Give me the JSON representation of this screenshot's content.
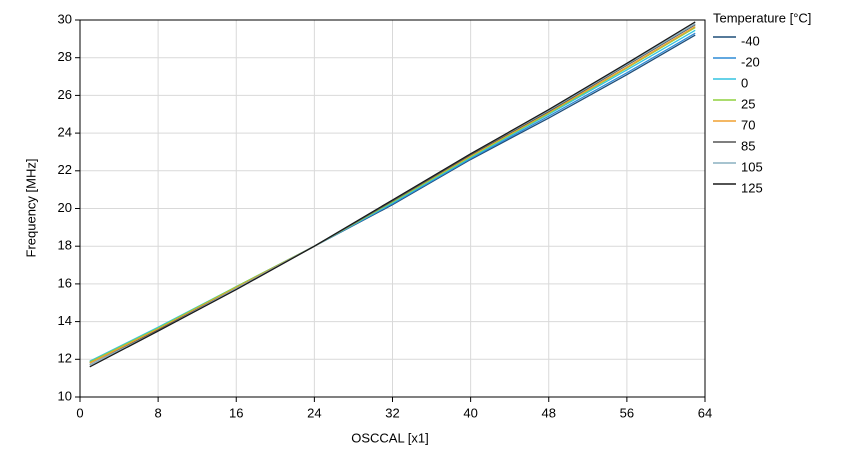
{
  "chart_data": {
    "type": "line",
    "xlabel": "OSCCAL [x1]",
    "ylabel": "Frequency [MHz]",
    "legend_title": "Temperature [°C]",
    "legend": "right",
    "x": [
      1,
      8,
      16,
      24,
      32,
      40,
      48,
      56,
      63
    ],
    "series": [
      {
        "name": "-40",
        "color": "#1f4e79",
        "values": [
          11.8,
          13.6,
          15.8,
          18.0,
          20.2,
          22.6,
          24.8,
          27.1,
          29.2
        ]
      },
      {
        "name": "-20",
        "color": "#2e8bd6",
        "values": [
          11.85,
          13.65,
          15.85,
          18.0,
          20.25,
          22.65,
          24.9,
          27.2,
          29.3
        ]
      },
      {
        "name": "0",
        "color": "#33c3e0",
        "values": [
          11.9,
          13.7,
          15.85,
          18.0,
          20.3,
          22.7,
          25.0,
          27.35,
          29.45
        ]
      },
      {
        "name": "25",
        "color": "#8fd13f",
        "values": [
          11.85,
          13.65,
          15.85,
          18.0,
          20.35,
          22.75,
          25.05,
          27.45,
          29.6
        ]
      },
      {
        "name": "70",
        "color": "#f0a030",
        "values": [
          11.8,
          13.6,
          15.8,
          18.0,
          20.4,
          22.8,
          25.1,
          27.5,
          29.65
        ]
      },
      {
        "name": "85",
        "color": "#555555",
        "values": [
          11.7,
          13.55,
          15.75,
          18.0,
          20.4,
          22.85,
          25.15,
          27.6,
          29.75
        ]
      },
      {
        "name": "105",
        "color": "#8ab0c0",
        "values": [
          11.7,
          13.5,
          15.75,
          18.0,
          20.45,
          22.9,
          25.2,
          27.65,
          29.8
        ]
      },
      {
        "name": "125",
        "color": "#1a1a1a",
        "values": [
          11.6,
          13.5,
          15.7,
          18.0,
          20.45,
          22.9,
          25.25,
          27.7,
          29.9
        ]
      }
    ],
    "xlim": [
      0,
      64
    ],
    "xticks": [
      0,
      8,
      16,
      24,
      32,
      40,
      48,
      56,
      64
    ],
    "ylim": [
      10,
      30
    ],
    "yticks": [
      10,
      12,
      14,
      16,
      18,
      20,
      22,
      24,
      26,
      28,
      30
    ],
    "grid": true
  }
}
